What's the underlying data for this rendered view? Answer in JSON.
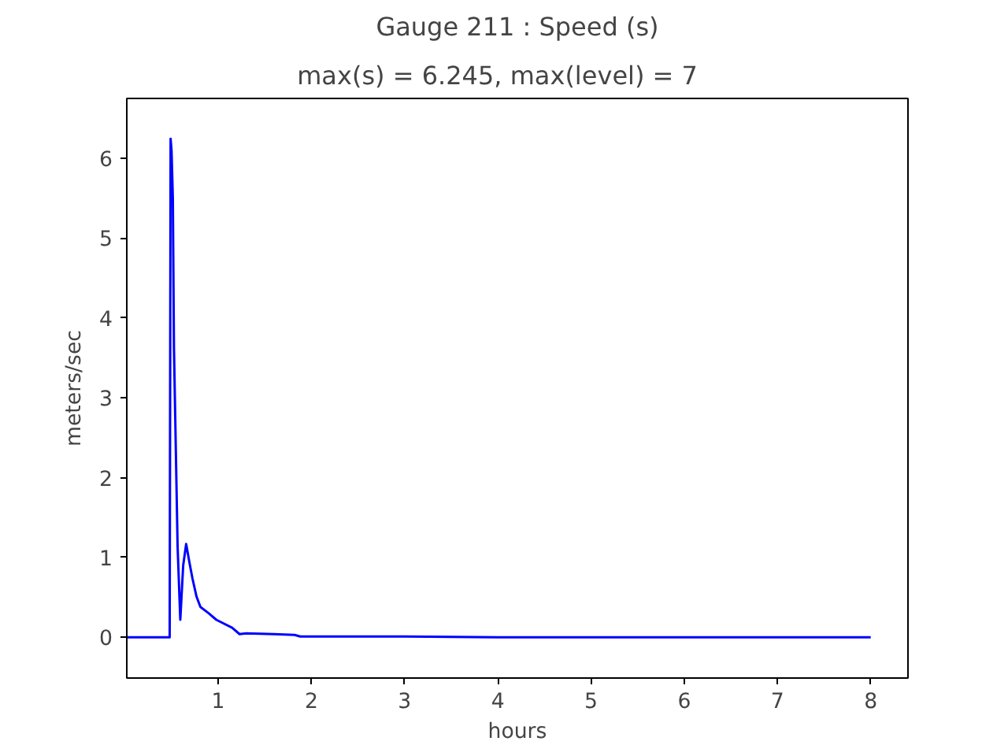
{
  "chart_data": {
    "type": "line",
    "title": "Gauge 211 : Speed (s)",
    "subtitle": "max(s) =   6.245,    max(level) = 7",
    "xlabel": "hours",
    "ylabel": "meters/sec",
    "series": [
      {
        "color": "#0000ff",
        "x": [
          0.02,
          0.48,
          0.49,
          0.5,
          0.514,
          0.526,
          0.565,
          0.594,
          0.625,
          0.657,
          0.69,
          0.724,
          0.768,
          0.81,
          0.9,
          0.98,
          1.15,
          1.23,
          1.3,
          1.6,
          1.82,
          1.88,
          2.5,
          3.0,
          4.0,
          5.0,
          6.0,
          7.0,
          8.0
        ],
        "values": [
          0,
          0,
          6.245,
          6.1,
          5.5,
          3.63,
          1.14,
          0.22,
          0.9,
          1.17,
          0.95,
          0.74,
          0.51,
          0.38,
          0.3,
          0.22,
          0.12,
          0.04,
          0.05,
          0.04,
          0.03,
          0.01,
          0.01,
          0.01,
          0.0,
          0.0,
          0.0,
          0.0,
          0.0
        ]
      }
    ],
    "xlim": [
      0.02,
      8.4
    ],
    "ylim": [
      -0.51,
      6.75
    ],
    "xticks": [
      1,
      2,
      3,
      4,
      5,
      6,
      7,
      8
    ],
    "yticks": [
      0,
      1,
      2,
      3,
      4,
      5,
      6
    ],
    "grid": false
  }
}
